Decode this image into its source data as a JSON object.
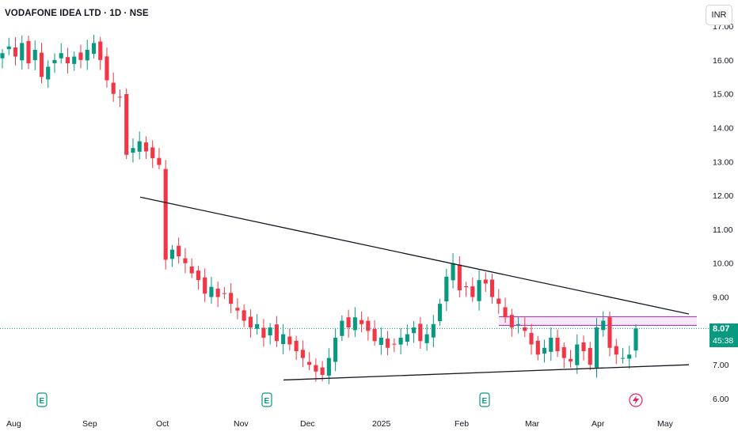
{
  "header": {
    "title": "VODAFONE IDEA LTD · 1D · NSE",
    "currency": "INR"
  },
  "price_tag": {
    "price": "8.07",
    "countdown": "45:38"
  },
  "colors": {
    "up": "#089981",
    "down": "#f23645",
    "trendline": "#131722",
    "zone": "#9c27b0",
    "price_line": "#089981"
  },
  "chart_data": {
    "type": "candlestick",
    "y_ticks": [
      "6.00",
      "7.00",
      "8.00",
      "9.00",
      "10.00",
      "11.00",
      "12.00",
      "13.00",
      "14.00",
      "15.00",
      "16.00",
      "17.00"
    ],
    "x_ticks": [
      "Aug",
      "Sep",
      "Oct",
      "Nov",
      "Dec",
      "2025",
      "Feb",
      "Mar",
      "Apr",
      "May"
    ],
    "ylim": [
      5.8,
      17.2
    ],
    "series_close": [
      16.2,
      16.4,
      16.1,
      16.5,
      15.9,
      16.3,
      15.5,
      15.8,
      16.0,
      16.2,
      15.9,
      16.1,
      16.0,
      16.3,
      16.5,
      16.0,
      15.4,
      15.0,
      14.9,
      13.2,
      13.4,
      13.6,
      13.3,
      13.1,
      12.9,
      10.1,
      10.4,
      10.2,
      10.0,
      9.7,
      9.5,
      9.1,
      9.3,
      9.0,
      9.1,
      8.8,
      8.6,
      8.3,
      8.1,
      8.2,
      7.8,
      8.1,
      7.7,
      7.9,
      7.6,
      7.4,
      7.2,
      7.0,
      6.8,
      6.7,
      7.2,
      7.8,
      8.3,
      8.1,
      8.4,
      8.2,
      8.0,
      7.7,
      7.8,
      7.5,
      7.6,
      7.8,
      7.9,
      8.1,
      7.7,
      7.9,
      8.2,
      8.8,
      9.6,
      10.0,
      9.2,
      9.3,
      9.0,
      9.5,
      9.4,
      9.0,
      8.8,
      8.4,
      8.1,
      8.2,
      8.0,
      7.6,
      7.3,
      7.5,
      7.8,
      7.4,
      7.2,
      7.1,
      7.6,
      7.4,
      7.0,
      8.1,
      8.3,
      7.5,
      7.3,
      7.2,
      7.3,
      8.07
    ],
    "trendlines": [
      {
        "from": [
          "Sep 23",
          11.95
        ],
        "to": [
          "May 1",
          8.5
        ]
      },
      {
        "from": [
          "Nov 26",
          6.55
        ],
        "to": [
          "May 1",
          7.0
        ]
      }
    ],
    "zones": [
      {
        "from": "Feb 14",
        "to": "May 1",
        "low": 8.35,
        "high": 8.42
      }
    ],
    "current_price": 8.07,
    "earnings_markers": [
      "Aug 13",
      "Nov 13",
      "Feb 14"
    ],
    "dividend_marker": "Apr 22"
  }
}
